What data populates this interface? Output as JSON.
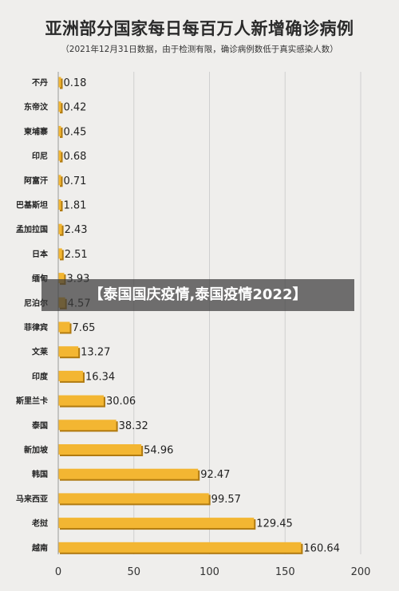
{
  "header": {
    "title": "亚洲部分国家每日每百万人新增确诊病例",
    "subtitle": "（2021年12月31日数据，由于检测有限，确诊病例数低于真实感染人数）"
  },
  "overlay": {
    "banner_text": "【泰国国庆疫情,泰国疫情2022】"
  },
  "chart_data": {
    "type": "bar",
    "orientation": "horizontal",
    "title": "亚洲部分国家每日每百万人新增确诊病例",
    "subtitle": "（2021年12月31日数据，由于检测有限，确诊病例数低于真实感染人数）",
    "categories": [
      "不丹",
      "东帝汶",
      "柬埔寨",
      "印尼",
      "阿富汗",
      "巴基斯坦",
      "孟加拉国",
      "日本",
      "缅甸",
      "尼泊尔",
      "菲律宾",
      "文莱",
      "印度",
      "斯里兰卡",
      "泰国",
      "新加坡",
      "韩国",
      "马来西亚",
      "老挝",
      "越南"
    ],
    "values": [
      0.18,
      0.42,
      0.45,
      0.68,
      0.71,
      1.81,
      2.43,
      2.51,
      3.93,
      4.57,
      7.65,
      13.27,
      16.34,
      30.06,
      38.32,
      54.96,
      92.47,
      99.57,
      129.45,
      160.64
    ],
    "value_labels": [
      "0.18",
      "0.42",
      "0.45",
      "0.68",
      "0.71",
      "1.81",
      "2.43",
      "2.51",
      "3.93",
      "4.57",
      "7.65",
      "13.27",
      "16.34",
      "30.06",
      "38.32",
      "54.96",
      "92.47",
      "99.57",
      "129.45",
      "160.64"
    ],
    "x_ticks": [
      "0",
      "50",
      "100",
      "150",
      "200"
    ],
    "xlim": [
      0,
      200
    ],
    "grid": true,
    "bar_color": "#f3b632",
    "bar_edge_color": "#b07a10"
  }
}
